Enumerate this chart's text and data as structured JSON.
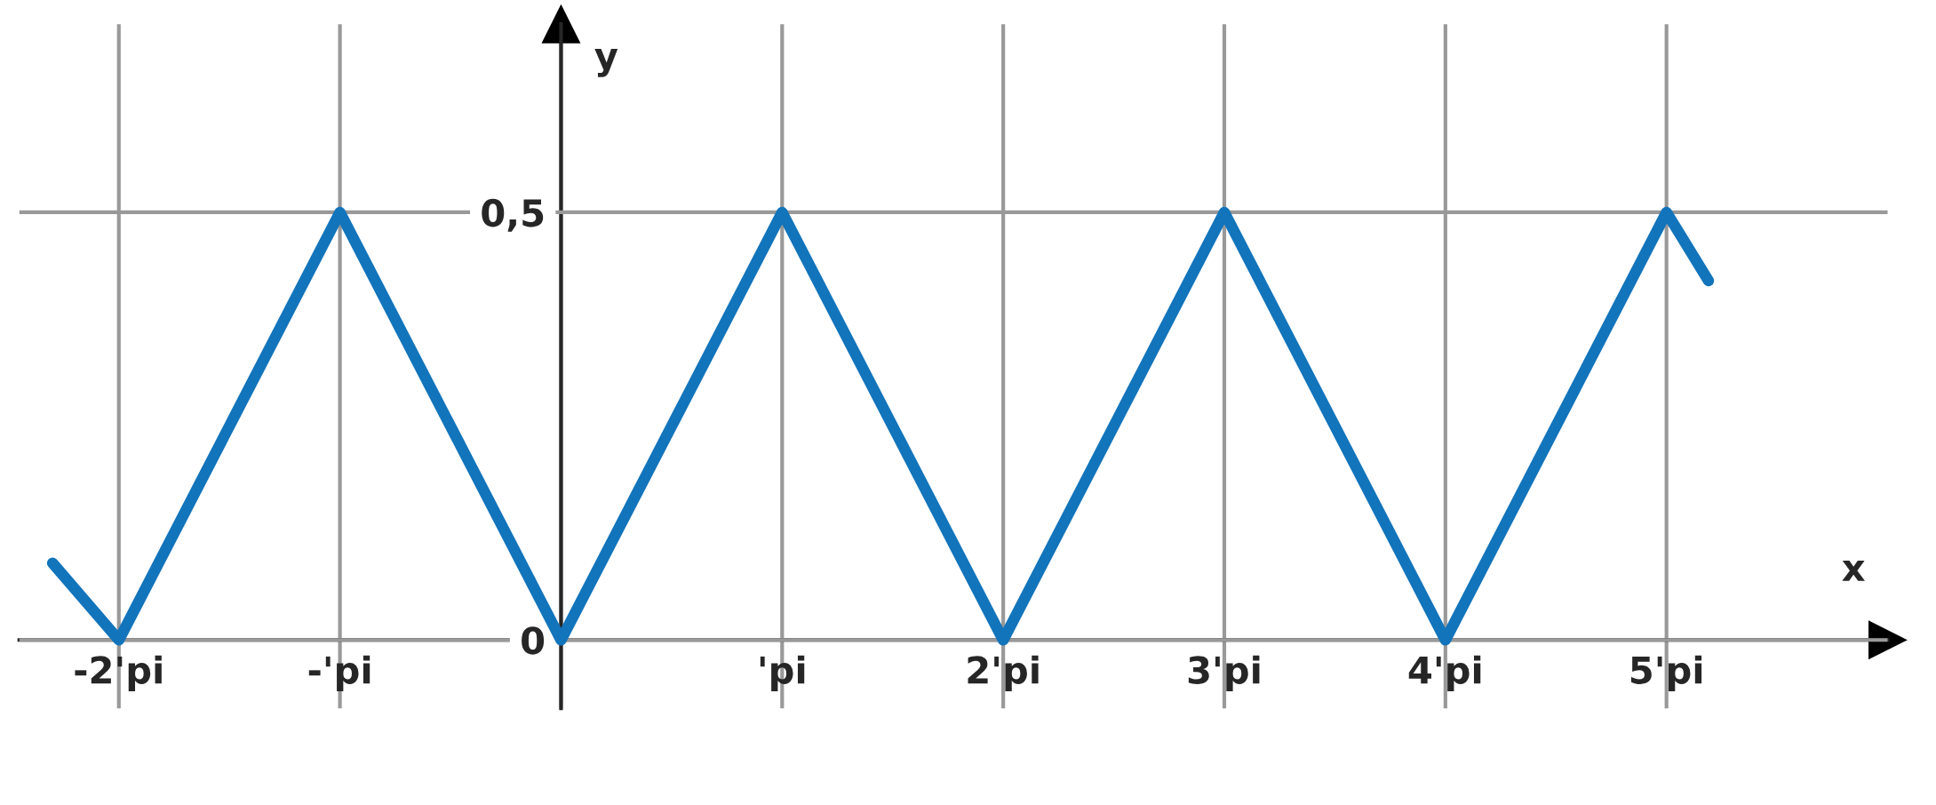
{
  "chart_data": {
    "type": "line",
    "xlabel": "x",
    "ylabel": "y",
    "x": [
      -2.3,
      -2,
      -1,
      0,
      1,
      2,
      3,
      4,
      5,
      5.19
    ],
    "series": [
      {
        "color": "#1274bb",
        "values": [
          0.09,
          0,
          0.5,
          0,
          0.5,
          0,
          0.5,
          0,
          0.5,
          0.42
        ]
      }
    ],
    "xlim": [
      -2.45,
      6.0
    ],
    "ylim": [
      -0.08,
      0.72
    ],
    "xticks": [
      {
        "value": -2,
        "label": "-2'pi"
      },
      {
        "value": -1,
        "label": "-'pi"
      },
      {
        "value": 0,
        "label": null
      },
      {
        "value": 1,
        "label": "'pi"
      },
      {
        "value": 2,
        "label": "2'pi"
      },
      {
        "value": 3,
        "label": "3'pi"
      },
      {
        "value": 4,
        "label": "4'pi"
      },
      {
        "value": 5,
        "label": "5'pi"
      }
    ],
    "yticks": [
      {
        "value": 0,
        "label": "0"
      },
      {
        "value": 0.5,
        "label": "0,5"
      }
    ],
    "grid": true,
    "marker": "none",
    "line_style": "solid"
  }
}
